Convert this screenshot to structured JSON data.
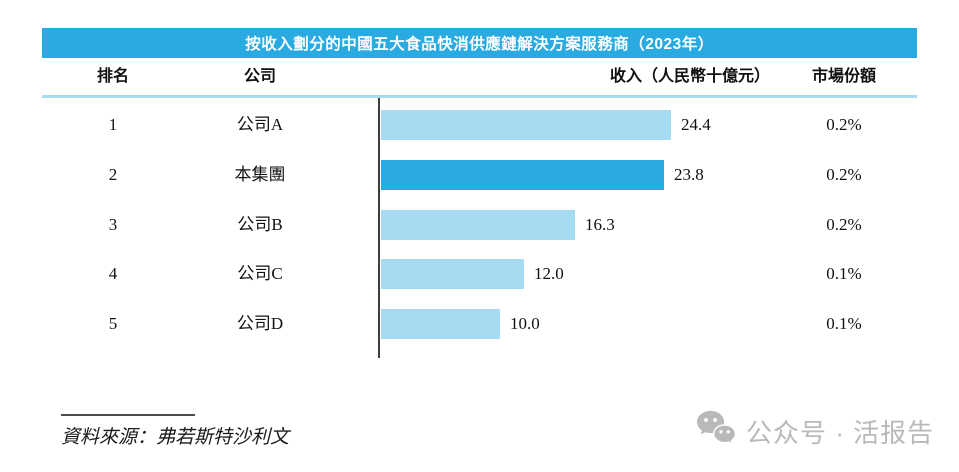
{
  "header": {
    "title": "按收入劃分的中國五大食品快消供應鏈解決方案服務商（2023年）",
    "title_bg": "#29ABE2",
    "columns": {
      "rank": "排名",
      "company": "公司",
      "revenue": "收入（人民幣十億元）",
      "share": "市場份額"
    }
  },
  "chart_data": {
    "type": "bar",
    "orientation": "horizontal",
    "title": "按收入劃分的中國五大食品快消供應鏈解決方案服務商（2023年）",
    "xlabel": "收入（人民幣十億元）",
    "xlim": [
      0,
      25
    ],
    "grid": false,
    "categories": [
      "公司A",
      "本集團",
      "公司B",
      "公司C",
      "公司D"
    ],
    "values": [
      24.4,
      23.8,
      16.3,
      12.0,
      10.0
    ],
    "rows": [
      {
        "rank": "1",
        "company": "公司A",
        "revenue": 24.4,
        "revenue_label": "24.4",
        "share": "0.2%",
        "highlighted": false
      },
      {
        "rank": "2",
        "company": "本集團",
        "revenue": 23.8,
        "revenue_label": "23.8",
        "share": "0.2%",
        "highlighted": true
      },
      {
        "rank": "3",
        "company": "公司B",
        "revenue": 16.3,
        "revenue_label": "16.3",
        "share": "0.2%",
        "highlighted": false
      },
      {
        "rank": "4",
        "company": "公司C",
        "revenue": 12.0,
        "revenue_label": "12.0",
        "share": "0.1%",
        "highlighted": false
      },
      {
        "rank": "5",
        "company": "公司D",
        "revenue": 10.0,
        "revenue_label": "10.0",
        "share": "0.1%",
        "highlighted": false
      }
    ],
    "colors": {
      "bar": "#A6DBF1",
      "bar_highlight": "#29ABE2",
      "axis": "#3d3d3d"
    }
  },
  "footer": {
    "source": "資料來源：弗若斯特沙利文"
  },
  "watermark": {
    "icon": "wechat-icon",
    "text": "公众号 · 活报告",
    "color": "#b9b9b9"
  }
}
